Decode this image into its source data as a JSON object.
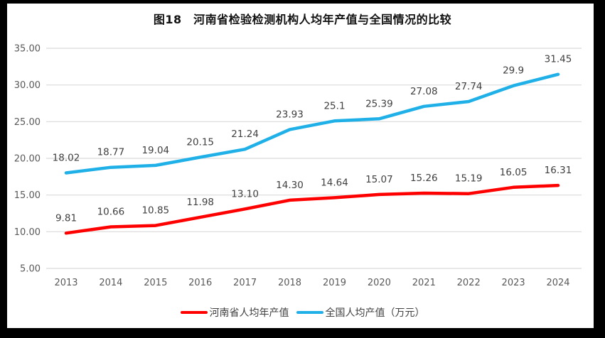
{
  "title": "图18　河南省检验检测机构人均年产值与全国情况的比较",
  "chart_data": {
    "type": "line",
    "title": "图18　河南省检验检测机构人均年产值与全国情况的比较",
    "categories": [
      "2013",
      "2014",
      "2015",
      "2016",
      "2017",
      "2018",
      "2019",
      "2020",
      "2021",
      "2022",
      "2023",
      "2024"
    ],
    "series": [
      {
        "name": "河南省人均年产值",
        "color": "#FF0000",
        "values": [
          9.81,
          10.66,
          10.85,
          11.98,
          13.1,
          14.3,
          14.64,
          15.07,
          15.26,
          15.19,
          16.05,
          16.31
        ],
        "labels": [
          "9.81",
          "10.66",
          "10.85",
          "11.98",
          "13.10",
          "14.30",
          "14.64",
          "15.07",
          "15.26",
          "15.19",
          "16.05",
          "16.31"
        ]
      },
      {
        "name": "全国人均产值（万元）",
        "color": "#1FB0E8",
        "values": [
          18.02,
          18.77,
          19.04,
          20.15,
          21.24,
          23.93,
          25.1,
          25.39,
          27.08,
          27.74,
          29.9,
          31.45
        ],
        "labels": [
          "18.02",
          "18.77",
          "19.04",
          "20.15",
          "21.24",
          "23.93",
          "25.1",
          "25.39",
          "27.08",
          "27.74",
          "29.9",
          "31.45"
        ]
      }
    ],
    "y_axis": {
      "min": 5,
      "max": 35,
      "step": 5,
      "tick_labels": [
        "5.00",
        "10.00",
        "15.00",
        "20.00",
        "25.00",
        "30.00",
        "35.00"
      ]
    },
    "xlabel": "",
    "ylabel": "",
    "grid": true,
    "legend_position": "bottom"
  },
  "colors": {
    "grid": "#D9D9D9",
    "tick_text": "#595959",
    "data_label_text": "#3F3F3F",
    "frame": "#000000",
    "background": "#FFFFFF",
    "henan_line": "#FF0000",
    "national_line": "#1FB0E8"
  }
}
